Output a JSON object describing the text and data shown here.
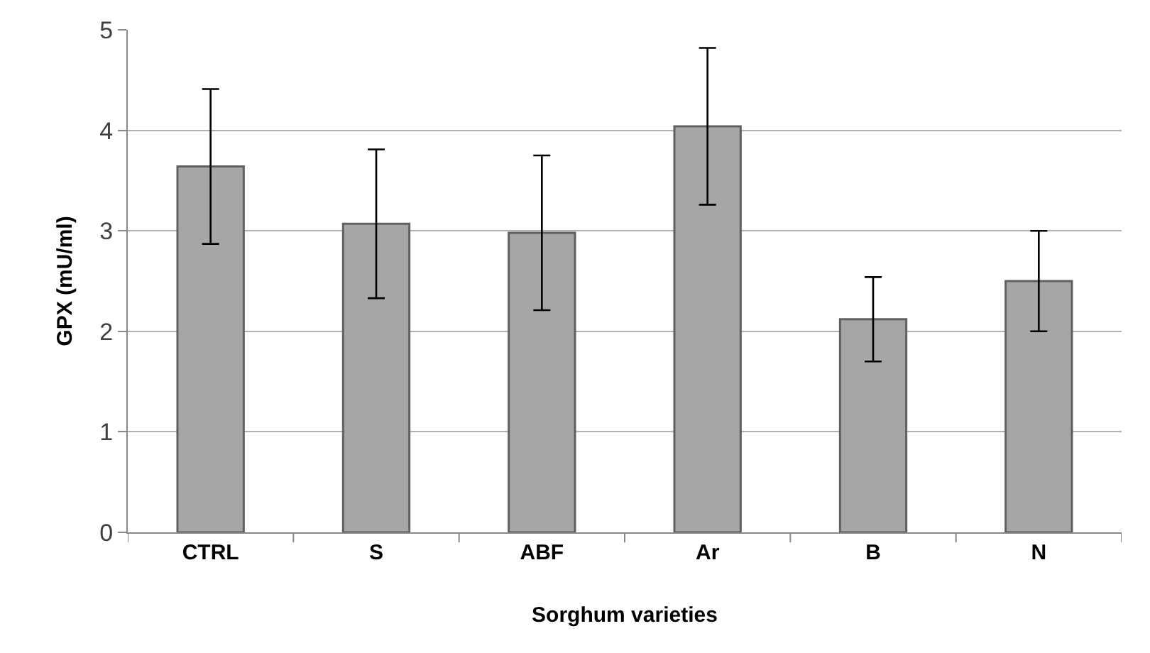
{
  "chart_data": {
    "type": "bar",
    "xlabel": "Sorghum varieties",
    "ylabel": "GPX (mU/ml)",
    "categories": [
      "CTRL",
      "S",
      "ABF",
      "Ar",
      "B",
      "N"
    ],
    "values": [
      3.64,
      3.07,
      2.98,
      4.04,
      2.12,
      2.5
    ],
    "errors": [
      0.77,
      0.74,
      0.77,
      0.78,
      0.42,
      0.5
    ],
    "color": "#a6a6a6",
    "ylim": [
      0,
      5
    ],
    "yticks": [
      0,
      1,
      2,
      3,
      4,
      5
    ],
    "grid": "y",
    "legend": false
  }
}
